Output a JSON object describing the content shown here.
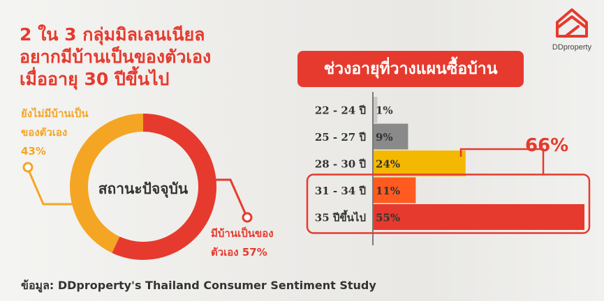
{
  "headline": {
    "line1": "2 ใน 3 กลุ่มมิลเลนเนียล",
    "line2": "อยากมีบ้านเป็นของตัวเอง",
    "line3": "เมื่ออายุ 30 ปีขึ้นไป"
  },
  "brand": {
    "name": "DDproperty",
    "color": "#e63a2e",
    "icon": "house-logo-icon"
  },
  "colors": {
    "accent_red": "#e63a2e",
    "accent_yellow": "#f5a524",
    "orange": "#ff5a1f",
    "gray_dark": "#8a8a8a",
    "gray_light": "#c9c9c9"
  },
  "source": "ข้อมูล: DDproperty's Thailand Consumer Sentiment Study",
  "chart_data": [
    {
      "type": "pie",
      "center_label": "สถานะปัจจุบัน",
      "slices": [
        {
          "label_line1": "ยังไม่มีบ้านเป็น",
          "label_line2": "ของตัวเอง",
          "value_label": "43%",
          "value": 43,
          "color": "#f5a524"
        },
        {
          "label_line1": "มีบ้านเป็นของ",
          "label_line2": "ตัวเอง 57%",
          "value": 57,
          "color": "#e63a2e"
        }
      ]
    },
    {
      "type": "bar",
      "orientation": "horizontal",
      "title": "ช่วงอายุที่วางแผนซื้อบ้าน",
      "categories": [
        "22 - 24 ปี",
        "25 - 27 ปี",
        "28 - 30 ปี",
        "31 - 34 ปี",
        "35 ปีขึ้นไป"
      ],
      "values": [
        1,
        9,
        24,
        11,
        55
      ],
      "value_labels": [
        "1%",
        "9%",
        "24%",
        "11%",
        "55%"
      ],
      "colors": [
        "#c9c9c9",
        "#8a8a8a",
        "#f5b800",
        "#ff5a1f",
        "#e63a2e"
      ],
      "xlim": [
        0,
        55
      ],
      "grid": false,
      "annotation": {
        "label": "66%",
        "groups_categories": [
          "31 - 34 ปี",
          "35 ปีขึ้นไป"
        ]
      }
    }
  ]
}
